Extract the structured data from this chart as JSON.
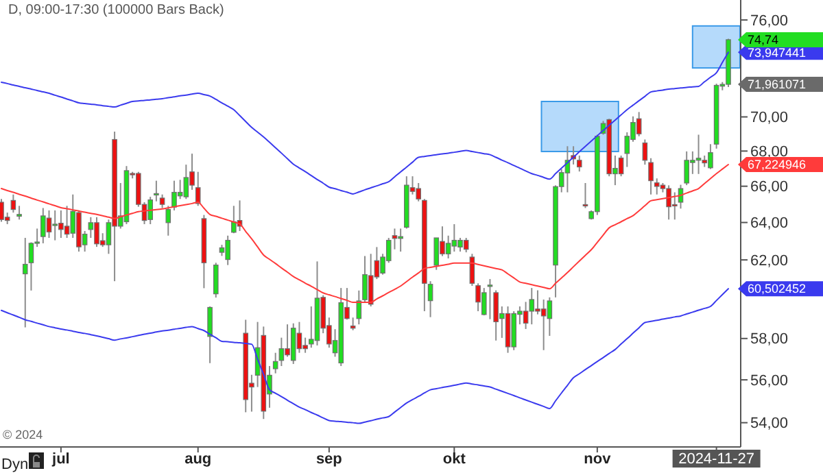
{
  "chart_data": {
    "type": "candlestick",
    "title": "D, 09:00-17:30 (100000 Bars Back)",
    "log": true,
    "categories": [
      null,
      null,
      null,
      null,
      null,
      null,
      null,
      null,
      null,
      null,
      "jul",
      null,
      null,
      null,
      null,
      null,
      null,
      null,
      null,
      null,
      null,
      null,
      null,
      null,
      null,
      null,
      null,
      null,
      null,
      null,
      null,
      null,
      null,
      "aug",
      null,
      null,
      null,
      null,
      null,
      null,
      null,
      null,
      null,
      null,
      null,
      null,
      null,
      null,
      null,
      null,
      null,
      null,
      null,
      null,
      null,
      "sep",
      null,
      null,
      null,
      null,
      null,
      null,
      null,
      null,
      null,
      null,
      null,
      null,
      null,
      null,
      null,
      null,
      null,
      null,
      null,
      null,
      "okt",
      null,
      null,
      null,
      null,
      null,
      null,
      null,
      null,
      null,
      null,
      null,
      null,
      null,
      null,
      null,
      null,
      null,
      null,
      null,
      null,
      null,
      null,
      null,
      "nov",
      null,
      null,
      null,
      null,
      null,
      null,
      null,
      null,
      null,
      null,
      null,
      null,
      null,
      null,
      null,
      null,
      null,
      null,
      null,
      "2024-11-27",
      null,
      null
    ],
    "ohlc": [
      [
        65.11,
        65.29,
        64.04,
        64.16
      ],
      [
        64.29,
        64.54,
        63.91,
        64.11
      ],
      [
        65.21,
        65.54,
        64.54,
        64.71
      ],
      [
        64.34,
        64.91,
        64.16,
        64.44
      ],
      [
        61.27,
        63.17,
        58.55,
        61.77
      ],
      [
        61.85,
        62.93,
        60.41,
        62.88
      ],
      [
        62.88,
        63.67,
        62.69,
        62.95
      ],
      [
        63.24,
        64.79,
        62.88,
        64.36
      ],
      [
        64.24,
        64.66,
        63.17,
        63.49
      ],
      [
        63.86,
        64.66,
        63.04,
        63.91
      ],
      [
        63.96,
        64.66,
        63.17,
        63.62
      ],
      [
        63.8,
        64.91,
        63.17,
        63.37
      ],
      [
        63.42,
        65.54,
        63.17,
        64.61
      ],
      [
        64.54,
        64.66,
        62.44,
        62.69
      ],
      [
        62.8,
        63.54,
        62.44,
        63.37
      ],
      [
        63.62,
        64.29,
        63.17,
        63.99
      ],
      [
        63.99,
        64.29,
        62.69,
        62.85
      ],
      [
        63.02,
        63.42,
        62.69,
        62.8
      ],
      [
        62.8,
        64.16,
        62.32,
        63.99
      ],
      [
        68.67,
        69.13,
        60.89,
        63.8
      ],
      [
        63.8,
        66.18,
        63.67,
        64.36
      ],
      [
        64.04,
        67.14,
        63.91,
        66.88
      ],
      [
        66.72,
        66.81,
        66.44,
        66.66
      ],
      [
        66.72,
        66.81,
        64.86,
        64.99
      ],
      [
        64.99,
        65.11,
        63.91,
        64.11
      ],
      [
        64.16,
        65.41,
        63.91,
        65.24
      ],
      [
        65.51,
        66.31,
        65.16,
        65.59
      ],
      [
        65.34,
        65.54,
        64.79,
        64.99
      ],
      [
        63.99,
        64.91,
        63.29,
        64.71
      ],
      [
        64.84,
        66.31,
        64.66,
        65.66
      ],
      [
        65.46,
        66.36,
        65.29,
        65.66
      ],
      [
        65.41,
        67.22,
        65.29,
        66.49
      ],
      [
        66.81,
        67.85,
        65.8,
        66.06
      ],
      [
        65.92,
        66.81,
        64.91,
        65.04
      ],
      [
        64.21,
        64.41,
        60.53,
        61.85
      ],
      [
        58.1,
        59.6,
        56.8,
        59.55
      ],
      [
        60.24,
        61.85,
        60.05,
        61.73
      ],
      [
        62.4,
        62.8,
        62.21,
        62.64
      ],
      [
        62.02,
        63.29,
        61.73,
        63.04
      ],
      [
        63.47,
        64.91,
        63.42,
        64.04
      ],
      [
        64.11,
        65.21,
        63.54,
        63.8
      ],
      [
        58.26,
        58.93,
        54.48,
        55.07
      ],
      [
        55.84,
        56.24,
        54.51,
        55.66
      ],
      [
        56.22,
        58.82,
        55.66,
        57.55
      ],
      [
        58.15,
        58.59,
        54.17,
        54.53
      ],
      [
        55.33,
        56.66,
        54.69,
        56.22
      ],
      [
        56.53,
        57.3,
        56.31,
        56.88
      ],
      [
        56.93,
        58.04,
        56.66,
        57.5
      ],
      [
        57.5,
        58.7,
        57.11,
        57.2
      ],
      [
        56.93,
        58.75,
        56.76,
        58.51
      ],
      [
        58.26,
        58.82,
        57.3,
        57.5
      ],
      [
        57.66,
        58.04,
        57.3,
        57.5
      ],
      [
        57.73,
        59.6,
        57.55,
        57.96
      ],
      [
        57.9,
        61.92,
        57.66,
        60.02
      ],
      [
        60.06,
        60.17,
        58.26,
        58.51
      ],
      [
        58.64,
        59.04,
        57.55,
        57.73
      ],
      [
        57.3,
        58.46,
        57.11,
        57.9
      ],
      [
        56.81,
        60.54,
        56.66,
        59.79
      ],
      [
        59.55,
        60.54,
        58.94,
        58.99
      ],
      [
        58.62,
        59.04,
        58.41,
        58.51
      ],
      [
        58.99,
        60.41,
        58.7,
        59.88
      ],
      [
        59.94,
        62.2,
        59.83,
        61.23
      ],
      [
        61.18,
        62.32,
        59.6,
        59.71
      ],
      [
        61.96,
        62.68,
        61.0,
        61.11
      ],
      [
        61.31,
        62.32,
        61.23,
        62.15
      ],
      [
        61.96,
        63.17,
        61.85,
        63.04
      ],
      [
        63.29,
        63.67,
        62.56,
        63.14
      ],
      [
        63.14,
        63.67,
        62.44,
        63.24
      ],
      [
        63.74,
        66.56,
        63.67,
        66.06
      ],
      [
        65.92,
        66.56,
        65.54,
        65.71
      ],
      [
        65.87,
        66.18,
        65.16,
        65.29
      ],
      [
        65.21,
        65.29,
        59.36,
        60.78
      ],
      [
        59.89,
        60.89,
        59.06,
        60.73
      ],
      [
        61.72,
        63.17,
        61.48,
        63.17
      ],
      [
        62.98,
        63.79,
        62.2,
        62.32
      ],
      [
        62.32,
        63.29,
        62.08,
        62.88
      ],
      [
        62.73,
        63.91,
        62.44,
        63.04
      ],
      [
        62.68,
        63.17,
        62.44,
        63.04
      ],
      [
        63.04,
        63.17,
        62.4,
        62.56
      ],
      [
        62.15,
        62.32,
        60.65,
        60.78
      ],
      [
        60.66,
        60.78,
        59.36,
        59.82
      ],
      [
        59.19,
        60.54,
        59.15,
        60.3
      ],
      [
        60.64,
        61.0,
        58.96,
        60.69
      ],
      [
        60.3,
        60.42,
        57.9,
        58.83
      ],
      [
        58.99,
        59.6,
        58.03,
        59.24
      ],
      [
        59.24,
        59.6,
        57.3,
        57.59
      ],
      [
        57.59,
        59.36,
        57.43,
        59.24
      ],
      [
        59.2,
        59.6,
        58.7,
        59.36
      ],
      [
        59.36,
        59.83,
        58.47,
        58.76
      ],
      [
        59.36,
        60.54,
        58.7,
        59.95
      ],
      [
        59.47,
        60.42,
        59.2,
        59.36
      ],
      [
        59.47,
        59.95,
        57.43,
        59.12
      ],
      [
        58.99,
        60.06,
        58.13,
        59.88
      ],
      [
        61.73,
        66.05,
        60.06,
        65.98
      ],
      [
        65.98,
        66.96,
        65.66,
        66.77
      ],
      [
        66.75,
        68.28,
        65.66,
        67.47
      ],
      [
        67.74,
        68.28,
        67.23,
        67.55
      ],
      [
        67.47,
        67.74,
        66.83,
        67.09
      ],
      [
        64.98,
        66.18,
        64.79,
        64.91
      ],
      [
        64.21,
        64.66,
        64.16,
        64.59
      ],
      [
        64.59,
        68.95,
        64.41,
        68.86
      ],
      [
        69.03,
        69.76,
        68.95,
        69.61
      ],
      [
        69.84,
        69.89,
        66.56,
        66.7
      ],
      [
        66.7,
        67.74,
        66.06,
        67.01
      ],
      [
        67.6,
        67.74,
        66.56,
        66.7
      ],
      [
        67.86,
        69.09,
        67.09,
        68.86
      ],
      [
        68.67,
        70.03,
        68.54,
        69.67
      ],
      [
        69.89,
        70.29,
        68.86,
        69.0
      ],
      [
        68.47,
        68.67,
        67.22,
        67.47
      ],
      [
        67.34,
        67.59,
        65.54,
        66.31
      ],
      [
        66.19,
        66.44,
        65.54,
        65.99
      ],
      [
        66.06,
        66.18,
        65.66,
        65.87
      ],
      [
        65.87,
        66.05,
        64.16,
        64.86
      ],
      [
        64.98,
        65.66,
        64.16,
        64.91
      ],
      [
        65.11,
        66.08,
        64.76,
        65.87
      ],
      [
        66.18,
        67.98,
        66.06,
        67.47
      ],
      [
        67.34,
        67.98,
        66.69,
        67.47
      ],
      [
        67.47,
        68.95,
        66.69,
        67.59
      ],
      [
        67.47,
        67.74,
        67.09,
        67.32
      ],
      [
        67.04,
        68.4,
        66.97,
        67.91
      ],
      [
        68.4,
        72.0,
        68.14,
        71.9
      ],
      [
        71.85,
        72.1,
        71.6,
        71.961071
      ],
      [
        71.96,
        74.8,
        71.8,
        74.74
      ]
    ],
    "value_labels": [
      null,
      null,
      null,
      null,
      null,
      null,
      null,
      null,
      null,
      null,
      null,
      null,
      null,
      null,
      null,
      null,
      null,
      null,
      null,
      null,
      null,
      null,
      null,
      null,
      null,
      null,
      null,
      null,
      null,
      null,
      null,
      null,
      null,
      null,
      null,
      null,
      null,
      null,
      null,
      null,
      null,
      null,
      null,
      null,
      null,
      null,
      null,
      null,
      null,
      null,
      null,
      null,
      null,
      null,
      null,
      null,
      null,
      null,
      null,
      null,
      null,
      null,
      null,
      null,
      null,
      null,
      null,
      null,
      null,
      null,
      null,
      null,
      null,
      null,
      null,
      null,
      null,
      null,
      null,
      null,
      null,
      null,
      null,
      null,
      null,
      null,
      null,
      null,
      null,
      null,
      null,
      null,
      null,
      null,
      null,
      null,
      null,
      null,
      null,
      null,
      null,
      null,
      null,
      null,
      null,
      null,
      null,
      null,
      null,
      null,
      null,
      null,
      null,
      null,
      null,
      null,
      null,
      null,
      null,
      null,
      null,
      "71,961071",
      "74,74"
    ],
    "series": [
      {
        "type": "line",
        "color": "#3a3aee",
        "value_labels": [
          null,
          null,
          null,
          null,
          null,
          null,
          null,
          null,
          null,
          null,
          null,
          null,
          null,
          null,
          null,
          null,
          null,
          null,
          null,
          null,
          null,
          null,
          null,
          null,
          null,
          null,
          null,
          null,
          null,
          null,
          null,
          null,
          null,
          null,
          null,
          null,
          null,
          null,
          null,
          null,
          null,
          null,
          null,
          null,
          null,
          null,
          null,
          null,
          null,
          null,
          null,
          null,
          null,
          null,
          null,
          null,
          null,
          null,
          null,
          null,
          null,
          null,
          null,
          null,
          null,
          null,
          null,
          null,
          null,
          null,
          null,
          null,
          null,
          null,
          null,
          null,
          null,
          null,
          null,
          null,
          null,
          null,
          null,
          null,
          null,
          null,
          null,
          null,
          null,
          null,
          null,
          null,
          null,
          null,
          null,
          null,
          null,
          null,
          null,
          null,
          null,
          null,
          null,
          null,
          null,
          null,
          null,
          null,
          null,
          null,
          null,
          null,
          null,
          null,
          null,
          null,
          null,
          null,
          null,
          null,
          null,
          null,
          "73,947441"
        ],
        "values": [
          72.09,
          72.01,
          71.92,
          71.84,
          71.75,
          71.67,
          71.59,
          71.5,
          71.42,
          71.3,
          71.19,
          71.07,
          70.96,
          70.84,
          70.8,
          70.76,
          70.72,
          70.67,
          70.63,
          70.59,
          70.7,
          70.81,
          70.92,
          70.95,
          70.99,
          71.02,
          71.06,
          71.09,
          71.15,
          71.2,
          71.26,
          71.31,
          71.37,
          71.42,
          71.34,
          71.25,
          71.05,
          70.84,
          70.64,
          70.43,
          70.08,
          69.73,
          69.38,
          69.1,
          68.82,
          68.51,
          68.19,
          67.88,
          67.56,
          67.25,
          67.03,
          66.82,
          66.6,
          66.38,
          66.17,
          65.95,
          65.86,
          65.76,
          65.67,
          65.57,
          65.68,
          65.8,
          65.91,
          66.02,
          66.14,
          66.25,
          66.53,
          66.81,
          67.08,
          67.36,
          67.64,
          67.69,
          67.74,
          67.79,
          67.84,
          67.88,
          67.93,
          67.98,
          68.03,
          67.97,
          67.91,
          67.85,
          67.79,
          67.64,
          67.48,
          67.33,
          67.17,
          67.02,
          66.86,
          66.71,
          66.61,
          66.5,
          66.4,
          66.71,
          67.02,
          67.33,
          67.65,
          67.96,
          68.27,
          68.58,
          68.89,
          69.2,
          69.5,
          69.81,
          70.12,
          70.43,
          70.7,
          70.97,
          71.23,
          71.5,
          71.56,
          71.61,
          71.67,
          71.7,
          71.74,
          71.77,
          71.81,
          71.84,
          72.12,
          72.39,
          72.67,
          73.31,
          73.947441
        ]
      },
      {
        "type": "line",
        "color": "#ff3b3b",
        "value_labels": [
          null,
          null,
          null,
          null,
          null,
          null,
          null,
          null,
          null,
          null,
          null,
          null,
          null,
          null,
          null,
          null,
          null,
          null,
          null,
          null,
          null,
          null,
          null,
          null,
          null,
          null,
          null,
          null,
          null,
          null,
          null,
          null,
          null,
          null,
          null,
          null,
          null,
          null,
          null,
          null,
          null,
          null,
          null,
          null,
          null,
          null,
          null,
          null,
          null,
          null,
          null,
          null,
          null,
          null,
          null,
          null,
          null,
          null,
          null,
          null,
          null,
          null,
          null,
          null,
          null,
          null,
          null,
          null,
          null,
          null,
          null,
          null,
          null,
          null,
          null,
          null,
          null,
          null,
          null,
          null,
          null,
          null,
          null,
          null,
          null,
          null,
          null,
          null,
          null,
          null,
          null,
          null,
          null,
          null,
          null,
          null,
          null,
          null,
          null,
          null,
          null,
          null,
          null,
          null,
          null,
          null,
          null,
          null,
          null,
          null,
          null,
          null,
          null,
          null,
          null,
          null,
          null,
          null,
          null,
          null,
          null,
          null,
          "67,224946"
        ],
        "values": [
          65.87,
          65.76,
          65.66,
          65.55,
          65.45,
          65.34,
          65.23,
          65.13,
          65.02,
          64.92,
          64.81,
          64.75,
          64.69,
          64.63,
          64.56,
          64.5,
          64.44,
          64.37,
          64.29,
          64.22,
          64.31,
          64.41,
          64.5,
          64.59,
          64.63,
          64.67,
          64.7,
          64.74,
          64.8,
          64.86,
          64.92,
          64.98,
          65.04,
          65.11,
          64.78,
          64.44,
          64.34,
          64.23,
          64.13,
          64.02,
          63.92,
          63.52,
          63.12,
          62.69,
          62.26,
          62.03,
          61.81,
          61.58,
          61.36,
          61.13,
          60.96,
          60.79,
          60.63,
          60.46,
          60.29,
          60.19,
          60.1,
          60.0,
          59.91,
          59.81,
          59.81,
          59.81,
          59.81,
          59.98,
          60.14,
          60.31,
          60.47,
          60.64,
          60.87,
          61.1,
          61.32,
          61.55,
          61.61,
          61.66,
          61.72,
          61.77,
          61.83,
          61.83,
          61.83,
          61.83,
          61.76,
          61.69,
          61.62,
          61.55,
          61.48,
          61.27,
          61.06,
          60.85,
          60.78,
          60.71,
          60.64,
          60.57,
          60.5,
          60.78,
          61.06,
          61.34,
          61.64,
          61.94,
          62.24,
          62.54,
          62.93,
          63.32,
          63.71,
          63.88,
          64.04,
          64.21,
          64.37,
          64.64,
          64.92,
          65.19,
          65.25,
          65.31,
          65.37,
          65.43,
          65.49,
          65.62,
          65.74,
          65.87,
          66.15,
          66.43,
          66.71,
          66.97,
          67.224946
        ]
      },
      {
        "type": "line",
        "color": "#3a3aee",
        "value_labels": [
          null,
          null,
          null,
          null,
          null,
          null,
          null,
          null,
          null,
          null,
          null,
          null,
          null,
          null,
          null,
          null,
          null,
          null,
          null,
          null,
          null,
          null,
          null,
          null,
          null,
          null,
          null,
          null,
          null,
          null,
          null,
          null,
          null,
          null,
          null,
          null,
          null,
          null,
          null,
          null,
          null,
          null,
          null,
          null,
          null,
          null,
          null,
          null,
          null,
          null,
          null,
          null,
          null,
          null,
          null,
          null,
          null,
          null,
          null,
          null,
          null,
          null,
          null,
          null,
          null,
          null,
          null,
          null,
          null,
          null,
          null,
          null,
          null,
          null,
          null,
          null,
          null,
          null,
          null,
          null,
          null,
          null,
          null,
          null,
          null,
          null,
          null,
          null,
          null,
          null,
          null,
          null,
          null,
          null,
          null,
          null,
          null,
          null,
          null,
          null,
          null,
          null,
          null,
          null,
          null,
          null,
          null,
          null,
          null,
          null,
          null,
          null,
          null,
          null,
          null,
          null,
          null,
          null,
          null,
          null,
          null,
          null,
          "60,502452"
        ],
        "values": [
          59.4,
          59.28,
          59.17,
          59.05,
          58.93,
          58.85,
          58.76,
          58.68,
          58.59,
          58.53,
          58.47,
          58.42,
          58.36,
          58.3,
          58.25,
          58.19,
          58.13,
          58.06,
          57.99,
          57.92,
          57.98,
          58.03,
          58.09,
          58.15,
          58.21,
          58.26,
          58.32,
          58.37,
          58.41,
          58.46,
          58.5,
          58.55,
          58.59,
          58.49,
          58.39,
          58.21,
          58.04,
          57.86,
          57.84,
          57.81,
          57.79,
          57.76,
          57.72,
          56.99,
          56.26,
          55.53,
          55.37,
          55.21,
          55.04,
          54.88,
          54.72,
          54.6,
          54.47,
          54.35,
          54.22,
          54.1,
          54.07,
          54.05,
          54.02,
          54.0,
          53.97,
          54.03,
          54.09,
          54.16,
          54.22,
          54.28,
          54.49,
          54.7,
          54.91,
          55.07,
          55.22,
          55.38,
          55.53,
          55.58,
          55.64,
          55.69,
          55.74,
          55.8,
          55.85,
          55.8,
          55.76,
          55.71,
          55.66,
          55.56,
          55.46,
          55.36,
          55.26,
          55.15,
          55.05,
          54.95,
          54.85,
          54.75,
          54.65,
          55.01,
          55.38,
          55.74,
          56.1,
          56.29,
          56.49,
          56.68,
          56.88,
          57.07,
          57.27,
          57.46,
          57.73,
          57.99,
          58.26,
          58.53,
          58.79,
          58.85,
          58.9,
          58.96,
          59.01,
          59.07,
          59.12,
          59.22,
          59.31,
          59.41,
          59.5,
          59.6,
          59.9,
          60.2,
          60.502452
        ]
      }
    ],
    "ylim": [
      52.9,
      77.3
    ],
    "yticks": [
      {
        "value": 54,
        "label": "54,00"
      },
      {
        "value": 56,
        "label": "56,00"
      },
      {
        "value": 58,
        "label": "58,00"
      },
      {
        "value": 62,
        "label": "62,00"
      },
      {
        "value": 64,
        "label": "64,00"
      },
      {
        "value": 66,
        "label": "66,00"
      },
      {
        "value": 68,
        "label": "68,00"
      },
      {
        "value": 70,
        "label": "70,00"
      },
      {
        "value": 76,
        "label": "76,00"
      }
    ],
    "annotations": [
      "© 2024",
      "Dyn"
    ]
  }
}
